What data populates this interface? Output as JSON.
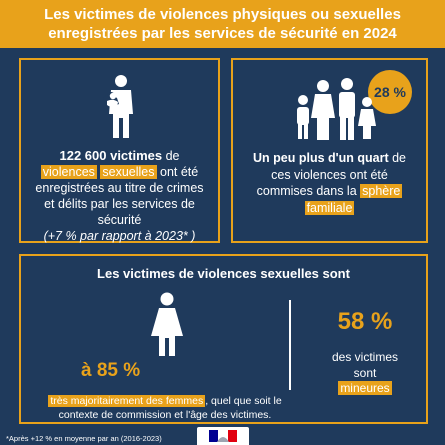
{
  "header": {
    "line1": "Les victimes de violences physiques ou sexuelles",
    "line2": "enregistrées par les services de sécurité en 2024"
  },
  "card1": {
    "count": "122 600 victimes",
    "t1": " de ",
    "hl1": "violences",
    "hl2": "sexuelles",
    "t2": " ont été enregistrées au titre de crimes et délits par les services de sécurité",
    "note": "(+7 % par rapport à 2023* )",
    "icon": "mother-child-icon"
  },
  "card2": {
    "badge": "28 %",
    "strong": "Un peu plus d'un quart",
    "t1": " de ces violences ont été commises dans la ",
    "hl1": "sphère",
    "hl2": "familiale",
    "icon": "family-icon"
  },
  "card3": {
    "title": "Les victimes de violences sexuelles sont",
    "pct_women": "à 85 %",
    "hl": "très majoritairement des femmes",
    "t1": ", quel que soit le contexte de commission et l'âge des victimes.",
    "pct_minors": "58 %",
    "minors_t1": "des victimes",
    "minors_t2": "sont",
    "minors_hl": "mineures",
    "icon": "woman-icon"
  },
  "footnote": "*Après +12 % en moyenne par an (2016-2023)",
  "colors": {
    "accent": "#e8a21b",
    "background": "#1f3a5c"
  }
}
